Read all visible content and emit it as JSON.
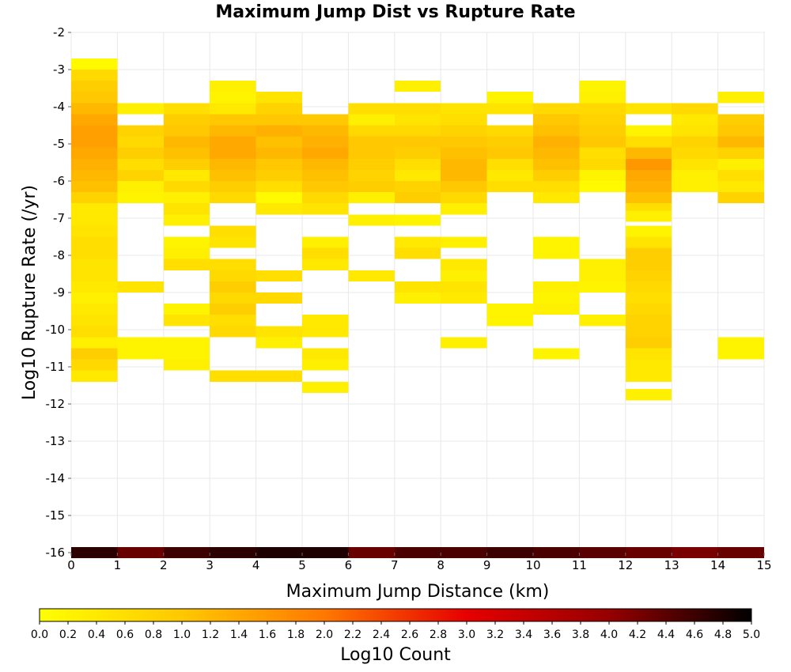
{
  "chart_data": {
    "type": "heatmap",
    "title": "Maximum Jump Dist vs Rupture Rate",
    "xlabel": "Maximum Jump Distance (km)",
    "ylabel": "Log10 Rupture Rate (/yr)",
    "xlim": [
      0,
      15
    ],
    "ylim": [
      -16,
      -2
    ],
    "x_ticks": [
      "0",
      "1",
      "2",
      "3",
      "4",
      "5",
      "6",
      "7",
      "8",
      "9",
      "10",
      "11",
      "12",
      "13",
      "14",
      "15"
    ],
    "y_ticks": [
      "-2",
      "-3",
      "-4",
      "-5",
      "-6",
      "-7",
      "-8",
      "-9",
      "-10",
      "-11",
      "-12",
      "-13",
      "-14",
      "-15",
      "-16"
    ],
    "grid": true,
    "x_bin_width": 1,
    "y_bin_height": 0.3,
    "colorbar": {
      "label": "Log10 Count",
      "min": 0.0,
      "max": 5.0,
      "stops": [
        "#ffff00",
        "#ffc800",
        "#ff7800",
        "#e60000",
        "#960000",
        "#000000"
      ],
      "ticks": [
        "0.0",
        "0.2",
        "0.4",
        "0.6",
        "0.8",
        "1.0",
        "1.2",
        "1.4",
        "1.6",
        "1.8",
        "2.0",
        "2.2",
        "2.4",
        "2.6",
        "2.8",
        "3.0",
        "3.2",
        "3.4",
        "3.6",
        "3.8",
        "4.0",
        "4.2",
        "4.4",
        "4.6",
        "4.8",
        "5.0"
      ]
    },
    "columns": [
      {
        "x": 0,
        "cells": [
          [
            -2.85,
            0.1
          ],
          [
            -3.15,
            0.7
          ],
          [
            -3.45,
            0.9
          ],
          [
            -3.75,
            1.0
          ],
          [
            -4.05,
            1.2
          ],
          [
            -4.35,
            1.4
          ],
          [
            -4.65,
            1.5
          ],
          [
            -4.95,
            1.5
          ],
          [
            -5.25,
            1.4
          ],
          [
            -5.55,
            1.3
          ],
          [
            -5.85,
            1.2
          ],
          [
            -6.15,
            1.1
          ],
          [
            -6.45,
            0.8
          ],
          [
            -6.75,
            0.4
          ],
          [
            -7.05,
            0.4
          ],
          [
            -7.35,
            0.5
          ],
          [
            -7.65,
            0.6
          ],
          [
            -7.95,
            0.6
          ],
          [
            -8.25,
            0.5
          ],
          [
            -8.55,
            0.5
          ],
          [
            -8.85,
            0.4
          ],
          [
            -9.15,
            0.3
          ],
          [
            -9.45,
            0.4
          ],
          [
            -9.75,
            0.5
          ],
          [
            -10.05,
            0.6
          ],
          [
            -10.35,
            0.3
          ],
          [
            -10.65,
            0.9
          ],
          [
            -10.95,
            0.7
          ],
          [
            -11.25,
            0.4
          ],
          [
            -16.0,
            4.7
          ]
        ]
      },
      {
        "x": 1,
        "cells": [
          [
            -4.05,
            0.3
          ],
          [
            -4.65,
            0.8
          ],
          [
            -4.95,
            0.7
          ],
          [
            -5.25,
            0.9
          ],
          [
            -5.55,
            0.6
          ],
          [
            -5.85,
            0.8
          ],
          [
            -6.15,
            0.3
          ],
          [
            -6.45,
            0.2
          ],
          [
            -8.85,
            0.5
          ],
          [
            -10.35,
            0.2
          ],
          [
            -10.65,
            0.2
          ],
          [
            -16.0,
            4.3
          ]
        ]
      },
      {
        "x": 2,
        "cells": [
          [
            -4.05,
            0.6
          ],
          [
            -4.35,
            0.9
          ],
          [
            -4.65,
            1.0
          ],
          [
            -4.95,
            1.2
          ],
          [
            -5.25,
            1.1
          ],
          [
            -5.55,
            0.9
          ],
          [
            -5.85,
            0.4
          ],
          [
            -6.15,
            0.7
          ],
          [
            -6.45,
            0.3
          ],
          [
            -6.75,
            0.5
          ],
          [
            -7.05,
            0.3
          ],
          [
            -7.65,
            0.2
          ],
          [
            -7.95,
            0.3
          ],
          [
            -8.25,
            0.6
          ],
          [
            -9.45,
            0.2
          ],
          [
            -9.75,
            0.5
          ],
          [
            -10.35,
            0.2
          ],
          [
            -10.65,
            0.2
          ],
          [
            -10.95,
            0.3
          ],
          [
            -16.0,
            4.6
          ]
        ]
      },
      {
        "x": 3,
        "cells": [
          [
            -3.45,
            0.3
          ],
          [
            -3.75,
            0.2
          ],
          [
            -4.05,
            0.4
          ],
          [
            -4.35,
            1.0
          ],
          [
            -4.65,
            1.2
          ],
          [
            -4.95,
            1.4
          ],
          [
            -5.25,
            1.4
          ],
          [
            -5.55,
            1.2
          ],
          [
            -5.85,
            1.1
          ],
          [
            -6.15,
            0.9
          ],
          [
            -6.45,
            0.7
          ],
          [
            -7.35,
            0.6
          ],
          [
            -7.65,
            0.5
          ],
          [
            -8.25,
            0.6
          ],
          [
            -8.55,
            0.7
          ],
          [
            -8.85,
            0.9
          ],
          [
            -9.15,
            0.7
          ],
          [
            -9.45,
            0.9
          ],
          [
            -9.75,
            0.6
          ],
          [
            -10.05,
            0.7
          ],
          [
            -11.25,
            0.6
          ],
          [
            -16.0,
            4.7
          ]
        ]
      },
      {
        "x": 4,
        "cells": [
          [
            -3.75,
            0.5
          ],
          [
            -4.05,
            0.8
          ],
          [
            -4.35,
            1.0
          ],
          [
            -4.65,
            1.3
          ],
          [
            -4.95,
            1.1
          ],
          [
            -5.25,
            1.2
          ],
          [
            -5.55,
            1.0
          ],
          [
            -5.85,
            0.9
          ],
          [
            -6.15,
            0.6
          ],
          [
            -6.45,
            0.1
          ],
          [
            -6.75,
            0.4
          ],
          [
            -8.55,
            0.6
          ],
          [
            -9.15,
            0.7
          ],
          [
            -10.05,
            0.5
          ],
          [
            -10.35,
            0.3
          ],
          [
            -11.25,
            0.6
          ],
          [
            -16.0,
            4.8
          ]
        ]
      },
      {
        "x": 5,
        "cells": [
          [
            -4.35,
            1.0
          ],
          [
            -4.65,
            1.2
          ],
          [
            -4.95,
            1.3
          ],
          [
            -5.25,
            1.4
          ],
          [
            -5.55,
            1.2
          ],
          [
            -5.85,
            1.1
          ],
          [
            -6.15,
            1.0
          ],
          [
            -6.45,
            0.7
          ],
          [
            -6.75,
            0.5
          ],
          [
            -7.65,
            0.3
          ],
          [
            -7.95,
            0.6
          ],
          [
            -8.25,
            0.4
          ],
          [
            -9.75,
            0.4
          ],
          [
            -10.05,
            0.4
          ],
          [
            -10.65,
            0.4
          ],
          [
            -10.95,
            0.3
          ],
          [
            -11.55,
            0.3
          ],
          [
            -16.0,
            4.8
          ]
        ]
      },
      {
        "x": 6,
        "cells": [
          [
            -4.05,
            0.6
          ],
          [
            -4.35,
            0.3
          ],
          [
            -4.65,
            0.7
          ],
          [
            -4.95,
            1.0
          ],
          [
            -5.25,
            1.0
          ],
          [
            -5.55,
            0.9
          ],
          [
            -5.85,
            0.8
          ],
          [
            -6.15,
            0.9
          ],
          [
            -6.45,
            0.3
          ],
          [
            -7.05,
            0.3
          ],
          [
            -8.55,
            0.4
          ],
          [
            -16.0,
            4.3
          ]
        ]
      },
      {
        "x": 7,
        "cells": [
          [
            -3.45,
            0.3
          ],
          [
            -4.05,
            0.6
          ],
          [
            -4.35,
            0.5
          ],
          [
            -4.65,
            0.7
          ],
          [
            -4.95,
            1.0
          ],
          [
            -5.25,
            0.9
          ],
          [
            -5.55,
            0.6
          ],
          [
            -5.85,
            0.4
          ],
          [
            -6.15,
            0.8
          ],
          [
            -6.45,
            0.9
          ],
          [
            -7.05,
            0.2
          ],
          [
            -7.65,
            0.4
          ],
          [
            -7.95,
            0.6
          ],
          [
            -8.85,
            0.5
          ],
          [
            -9.15,
            0.3
          ],
          [
            -16.0,
            4.5
          ]
        ]
      },
      {
        "x": 8,
        "cells": [
          [
            -4.05,
            0.5
          ],
          [
            -4.35,
            0.6
          ],
          [
            -4.65,
            0.8
          ],
          [
            -4.95,
            1.0
          ],
          [
            -5.25,
            1.1
          ],
          [
            -5.55,
            1.2
          ],
          [
            -5.85,
            1.2
          ],
          [
            -6.15,
            1.0
          ],
          [
            -6.45,
            0.7
          ],
          [
            -6.75,
            0.3
          ],
          [
            -7.65,
            0.3
          ],
          [
            -8.25,
            0.4
          ],
          [
            -8.55,
            0.3
          ],
          [
            -8.85,
            0.5
          ],
          [
            -9.15,
            0.4
          ],
          [
            -10.35,
            0.3
          ],
          [
            -16.0,
            4.5
          ]
        ]
      },
      {
        "x": 9,
        "cells": [
          [
            -3.75,
            0.2
          ],
          [
            -4.05,
            0.5
          ],
          [
            -4.65,
            0.7
          ],
          [
            -4.95,
            0.9
          ],
          [
            -5.25,
            1.0
          ],
          [
            -5.55,
            0.6
          ],
          [
            -5.85,
            0.4
          ],
          [
            -6.15,
            0.6
          ],
          [
            -9.45,
            0.2
          ],
          [
            -9.75,
            0.2
          ],
          [
            -16.0,
            4.6
          ]
        ]
      },
      {
        "x": 10,
        "cells": [
          [
            -4.05,
            0.7
          ],
          [
            -4.35,
            1.0
          ],
          [
            -4.65,
            1.1
          ],
          [
            -4.95,
            1.3
          ],
          [
            -5.25,
            1.2
          ],
          [
            -5.55,
            1.1
          ],
          [
            -5.85,
            0.9
          ],
          [
            -6.15,
            0.6
          ],
          [
            -6.45,
            0.4
          ],
          [
            -7.65,
            0.2
          ],
          [
            -7.95,
            0.2
          ],
          [
            -8.85,
            0.3
          ],
          [
            -9.15,
            0.2
          ],
          [
            -9.45,
            0.3
          ],
          [
            -10.65,
            0.2
          ],
          [
            -16.0,
            4.5
          ]
        ]
      },
      {
        "x": 11,
        "cells": [
          [
            -3.45,
            0.2
          ],
          [
            -3.75,
            0.3
          ],
          [
            -4.05,
            0.7
          ],
          [
            -4.35,
            0.8
          ],
          [
            -4.65,
            0.9
          ],
          [
            -4.95,
            1.0
          ],
          [
            -5.25,
            0.6
          ],
          [
            -5.55,
            0.7
          ],
          [
            -5.85,
            0.2
          ],
          [
            -6.15,
            0.1
          ],
          [
            -8.25,
            0.3
          ],
          [
            -8.55,
            0.3
          ],
          [
            -8.85,
            0.2
          ],
          [
            -9.75,
            0.3
          ],
          [
            -16.0,
            4.4
          ]
        ]
      },
      {
        "x": 12,
        "cells": [
          [
            -4.05,
            0.5
          ],
          [
            -4.65,
            0.2
          ],
          [
            -4.95,
            0.6
          ],
          [
            -5.25,
            1.2
          ],
          [
            -5.55,
            1.6
          ],
          [
            -5.85,
            1.4
          ],
          [
            -6.15,
            1.3
          ],
          [
            -6.45,
            1.1
          ],
          [
            -6.75,
            0.6
          ],
          [
            -6.95,
            0.3
          ],
          [
            -7.35,
            0.2
          ],
          [
            -7.65,
            0.5
          ],
          [
            -7.95,
            0.9
          ],
          [
            -8.25,
            0.9
          ],
          [
            -8.55,
            0.8
          ],
          [
            -8.85,
            0.7
          ],
          [
            -9.15,
            0.6
          ],
          [
            -9.45,
            0.7
          ],
          [
            -9.75,
            0.8
          ],
          [
            -10.05,
            0.8
          ],
          [
            -10.35,
            0.9
          ],
          [
            -10.65,
            0.5
          ],
          [
            -10.95,
            0.4
          ],
          [
            -11.25,
            0.4
          ],
          [
            -11.75,
            0.3
          ],
          [
            -16.0,
            4.3
          ]
        ]
      },
      {
        "x": 13,
        "cells": [
          [
            -4.05,
            0.7
          ],
          [
            -4.35,
            0.4
          ],
          [
            -4.65,
            0.5
          ],
          [
            -4.95,
            0.8
          ],
          [
            -5.25,
            0.7
          ],
          [
            -5.55,
            0.5
          ],
          [
            -5.85,
            0.3
          ],
          [
            -6.15,
            0.3
          ],
          [
            -16.0,
            4.2
          ]
        ]
      },
      {
        "x": 14,
        "cells": [
          [
            -3.75,
            0.3
          ],
          [
            -4.35,
            0.9
          ],
          [
            -4.65,
            1.0
          ],
          [
            -4.95,
            1.2
          ],
          [
            -5.25,
            0.8
          ],
          [
            -5.55,
            0.3
          ],
          [
            -5.85,
            0.6
          ],
          [
            -6.15,
            0.4
          ],
          [
            -6.45,
            0.8
          ],
          [
            -10.35,
            0.2
          ],
          [
            -10.65,
            0.2
          ],
          [
            -16.0,
            4.3
          ]
        ]
      }
    ]
  }
}
